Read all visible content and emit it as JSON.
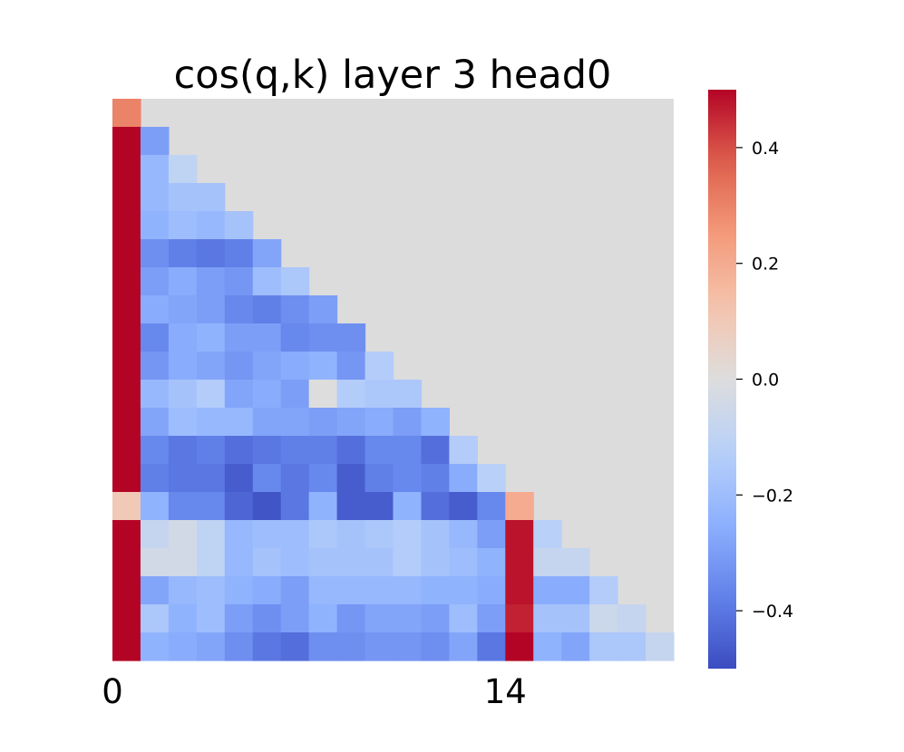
{
  "chart_data": {
    "type": "heatmap",
    "title": "cos(q,k) layer 3 head0",
    "n_rows": 20,
    "n_cols": 20,
    "mask": "upper-triangle",
    "mask_color": "#dddcdc",
    "colormap": "coolwarm",
    "vmin": -0.5,
    "vmax": 0.5,
    "x_ticks": [
      {
        "index": 0,
        "label": "0"
      },
      {
        "index": 14,
        "label": "14"
      }
    ],
    "y_ticks": [],
    "colorbar_ticks": [
      {
        "value": 0.4,
        "label": "0.4"
      },
      {
        "value": 0.2,
        "label": "0.2"
      },
      {
        "value": 0.0,
        "label": "0.0"
      },
      {
        "value": -0.2,
        "label": "−0.2"
      },
      {
        "value": -0.4,
        "label": "−0.4"
      }
    ],
    "rows": [
      [
        0.3
      ],
      [
        0.5,
        -0.3
      ],
      [
        0.5,
        -0.22,
        -0.1
      ],
      [
        0.5,
        -0.22,
        -0.18,
        -0.18
      ],
      [
        0.5,
        -0.24,
        -0.2,
        -0.22,
        -0.18
      ],
      [
        0.5,
        -0.34,
        -0.38,
        -0.4,
        -0.38,
        -0.28
      ],
      [
        0.5,
        -0.3,
        -0.26,
        -0.3,
        -0.32,
        -0.2,
        -0.16
      ],
      [
        0.5,
        -0.26,
        -0.28,
        -0.3,
        -0.36,
        -0.38,
        -0.34,
        -0.3
      ],
      [
        0.5,
        -0.36,
        -0.26,
        -0.24,
        -0.3,
        -0.3,
        -0.36,
        -0.34,
        -0.34
      ],
      [
        0.5,
        -0.32,
        -0.26,
        -0.28,
        -0.32,
        -0.28,
        -0.26,
        -0.24,
        -0.32,
        -0.14
      ],
      [
        0.5,
        -0.22,
        -0.18,
        -0.14,
        -0.28,
        -0.26,
        -0.3,
        0.0,
        -0.14,
        -0.16,
        -0.16
      ],
      [
        0.5,
        -0.28,
        -0.2,
        -0.22,
        -0.22,
        -0.28,
        -0.28,
        -0.3,
        -0.28,
        -0.26,
        -0.3,
        -0.24
      ],
      [
        0.5,
        -0.36,
        -0.4,
        -0.38,
        -0.42,
        -0.4,
        -0.38,
        -0.38,
        -0.42,
        -0.36,
        -0.36,
        -0.42,
        -0.14
      ],
      [
        0.5,
        -0.38,
        -0.4,
        -0.4,
        -0.46,
        -0.36,
        -0.4,
        -0.36,
        -0.46,
        -0.38,
        -0.36,
        -0.38,
        -0.26,
        -0.12
      ],
      [
        0.1,
        -0.24,
        -0.36,
        -0.36,
        -0.44,
        -0.48,
        -0.4,
        -0.24,
        -0.46,
        -0.46,
        -0.24,
        -0.42,
        -0.46,
        -0.36,
        0.2
      ],
      [
        0.5,
        -0.08,
        -0.04,
        -0.1,
        -0.22,
        -0.2,
        -0.2,
        -0.16,
        -0.18,
        -0.16,
        -0.14,
        -0.18,
        -0.22,
        -0.3,
        0.48,
        -0.12
      ],
      [
        0.5,
        -0.04,
        -0.04,
        -0.1,
        -0.22,
        -0.18,
        -0.2,
        -0.18,
        -0.18,
        -0.18,
        -0.14,
        -0.18,
        -0.2,
        -0.24,
        0.48,
        -0.08,
        -0.08
      ],
      [
        0.5,
        -0.28,
        -0.22,
        -0.2,
        -0.24,
        -0.26,
        -0.3,
        -0.22,
        -0.22,
        -0.22,
        -0.22,
        -0.24,
        -0.24,
        -0.26,
        0.48,
        -0.26,
        -0.26,
        -0.14
      ],
      [
        0.5,
        -0.16,
        -0.24,
        -0.2,
        -0.3,
        -0.34,
        -0.3,
        -0.24,
        -0.32,
        -0.28,
        -0.28,
        -0.3,
        -0.2,
        -0.3,
        0.46,
        -0.18,
        -0.18,
        -0.06,
        -0.08
      ],
      [
        0.5,
        -0.24,
        -0.26,
        -0.28,
        -0.34,
        -0.4,
        -0.42,
        -0.34,
        -0.34,
        -0.32,
        -0.32,
        -0.34,
        -0.28,
        -0.4,
        0.5,
        -0.24,
        -0.28,
        -0.16,
        -0.16,
        -0.08
      ]
    ]
  }
}
